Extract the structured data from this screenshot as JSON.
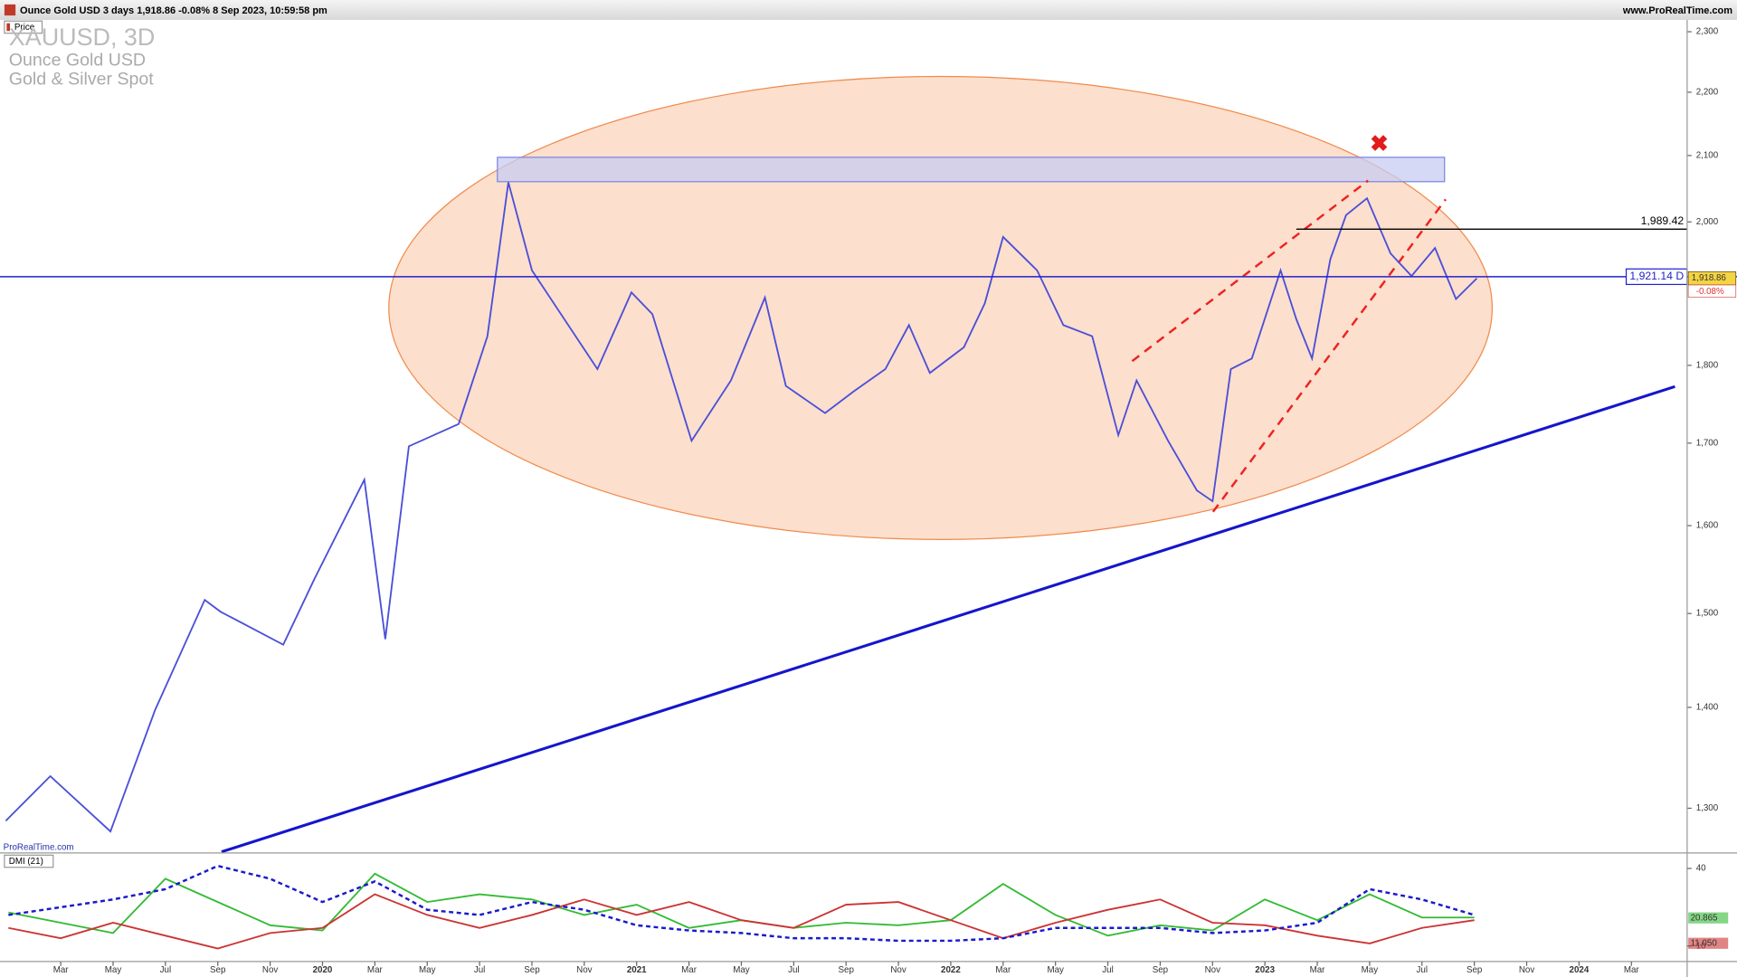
{
  "header": {
    "info": "Ounce Gold USD 3 days 1,918.86 -0.08% 8 Sep 2023, 10:59:58 pm",
    "site": "www.ProRealTime.com",
    "panel_label": "Price"
  },
  "legend": {
    "symbol": "XAUUSD, 3D",
    "name": "Ounce Gold USD",
    "group": "Gold & Silver Spot"
  },
  "watermark": "ProRealTime.com",
  "chart_data": [
    {
      "type": "line",
      "title": "Price",
      "x": [
        -0.1,
        1.6,
        3.9,
        5.6,
        7.5,
        8.1,
        10.5,
        11.7,
        13.6,
        14.4,
        15.3,
        17.2,
        18.3,
        19.1,
        20.0,
        22.5,
        23.8,
        24.6,
        26.1,
        27.6,
        28.9,
        29.7,
        31.2,
        32.3,
        33.5,
        34.4,
        35.2,
        36.5,
        37.3,
        38.0,
        39.3,
        40.3,
        41.4,
        42.4,
        43.1,
        44.3,
        45.4,
        46.0,
        46.7,
        47.5,
        48.6,
        49.2,
        49.8,
        50.5,
        51.1,
        51.9,
        52.8,
        53.6,
        54.5,
        55.3,
        56.1
      ],
      "series": [
        {
          "name": "XAUUSD",
          "color": "#4b4fd8",
          "values": [
            1288,
            1331,
            1278,
            1397,
            1515,
            1502,
            1466,
            1539,
            1655,
            1472,
            1696,
            1724,
            1839,
            2059,
            1930,
            1795,
            1899,
            1869,
            1703,
            1780,
            1892,
            1773,
            1738,
            1766,
            1795,
            1854,
            1790,
            1824,
            1884,
            1978,
            1930,
            1854,
            1839,
            1710,
            1780,
            1703,
            1642,
            1629,
            1795,
            1809,
            1930,
            1862,
            1809,
            1946,
            2010,
            2035,
            1954,
            1922,
            1962,
            1890,
            1918.86
          ]
        }
      ],
      "log_scale": true,
      "xlim": [
        -0.32,
        64.13
      ],
      "xticks": [
        {
          "value": 2,
          "label": "Mar"
        },
        {
          "value": 4,
          "label": "May"
        },
        {
          "value": 6,
          "label": "Jul"
        },
        {
          "value": 8,
          "label": "Sep"
        },
        {
          "value": 10,
          "label": "Nov"
        },
        {
          "value": 12,
          "label": "2020"
        },
        {
          "value": 14,
          "label": "Mar"
        },
        {
          "value": 16,
          "label": "May"
        },
        {
          "value": 18,
          "label": "Jul"
        },
        {
          "value": 20,
          "label": "Sep"
        },
        {
          "value": 22,
          "label": "Nov"
        },
        {
          "value": 24,
          "label": "2021"
        },
        {
          "value": 26,
          "label": "Mar"
        },
        {
          "value": 28,
          "label": "May"
        },
        {
          "value": 30,
          "label": "Jul"
        },
        {
          "value": 32,
          "label": "Sep"
        },
        {
          "value": 34,
          "label": "Nov"
        },
        {
          "value": 36,
          "label": "2022"
        },
        {
          "value": 38,
          "label": "Mar"
        },
        {
          "value": 40,
          "label": "May"
        },
        {
          "value": 42,
          "label": "Jul"
        },
        {
          "value": 44,
          "label": "Sep"
        },
        {
          "value": 46,
          "label": "Nov"
        },
        {
          "value": 48,
          "label": "2023"
        },
        {
          "value": 50,
          "label": "Mar"
        },
        {
          "value": 52,
          "label": "May"
        },
        {
          "value": 54,
          "label": "Jul"
        },
        {
          "value": 56,
          "label": "Sep"
        },
        {
          "value": 58,
          "label": "Nov"
        },
        {
          "value": 60,
          "label": "2024"
        },
        {
          "value": 62,
          "label": "Mar"
        }
      ],
      "ylim": [
        1258,
        2320
      ],
      "yticks": [
        {
          "value": 1300,
          "label": "1,300"
        },
        {
          "value": 1400,
          "label": "1,400"
        },
        {
          "value": 1500,
          "label": "1,500"
        },
        {
          "value": 1600,
          "label": "1,600"
        },
        {
          "value": 1700,
          "label": "1,700"
        },
        {
          "value": 1800,
          "label": "1,800"
        },
        {
          "value": 2000,
          "label": "2,000"
        },
        {
          "value": 2100,
          "label": "2,100"
        },
        {
          "value": 2200,
          "label": "2,200"
        },
        {
          "value": 2300,
          "label": "2,300"
        }
      ],
      "levels": [
        {
          "value": 1989.42,
          "label": "1,989.42",
          "color": "#000000"
        },
        {
          "value": 1921.14,
          "label": "1,921.14 D",
          "color": "#2222cc"
        }
      ],
      "last_price": {
        "value": 1918.86,
        "label": "1,918.86"
      },
      "change": "-0.08%"
    },
    {
      "type": "line",
      "title": "DMI (21)",
      "x": [
        0,
        2,
        4,
        6,
        8,
        10,
        12,
        14,
        16,
        18,
        20,
        22,
        24,
        26,
        28,
        30,
        32,
        34,
        36,
        38,
        40,
        42,
        44,
        46,
        48,
        50,
        52,
        54,
        56
      ],
      "series": [
        {
          "name": "+DI",
          "color": "#33bb33",
          "values": [
            23,
            19,
            15,
            36,
            27,
            18,
            16,
            38,
            27,
            30,
            28,
            22,
            26,
            17,
            20,
            17,
            19,
            18,
            20,
            34,
            22,
            14,
            18,
            16,
            28,
            20,
            30,
            21,
            21
          ]
        },
        {
          "name": "-DI",
          "color": "#cc3333",
          "values": [
            17,
            13,
            19,
            14,
            9,
            15,
            17,
            30,
            22,
            17,
            22,
            28,
            22,
            27,
            20,
            17,
            26,
            27,
            20,
            13,
            19,
            24,
            28,
            19,
            18,
            14,
            11,
            17,
            20
          ]
        },
        {
          "name": "ADX",
          "color": "#1a1acc",
          "dashed": true,
          "values": [
            22,
            25,
            28,
            32,
            41,
            36,
            27,
            35,
            24,
            22,
            27,
            24,
            18,
            16,
            15,
            13,
            13,
            12,
            12,
            13,
            17,
            17,
            17,
            15,
            16,
            19,
            32,
            28,
            22
          ]
        }
      ],
      "ylim": [
        4,
        43
      ],
      "yticks": [
        10,
        40
      ],
      "last_labels": [
        {
          "value": 20.865,
          "label": "20.865"
        },
        {
          "value": 11.05,
          "label": "11.050"
        }
      ]
    }
  ]
}
